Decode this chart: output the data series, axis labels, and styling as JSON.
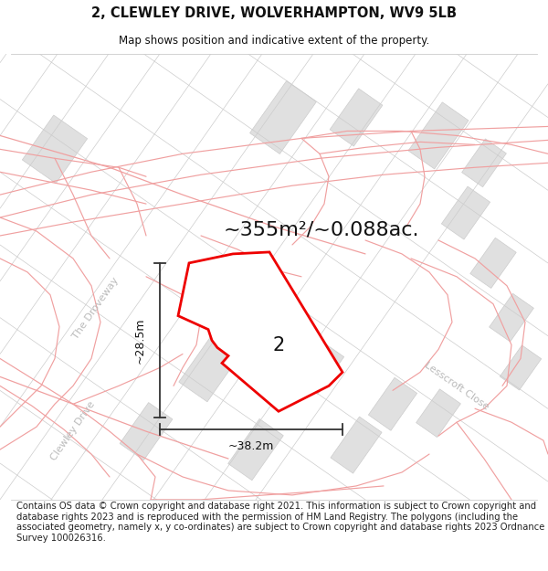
{
  "title_line1": "2, CLEWLEY DRIVE, WOLVERHAMPTON, WV9 5LB",
  "title_line2": "Map shows position and indicative extent of the property.",
  "area_text": "~355m²/~0.088ac.",
  "dim_width": "~38.2m",
  "dim_height": "~28.5m",
  "parcel_label": "2",
  "footer_text": "Contains OS data © Crown copyright and database right 2021. This information is subject to Crown copyright and database rights 2023 and is reproduced with the permission of HM Land Registry. The polygons (including the associated geometry, namely x, y co-ordinates) are subject to Crown copyright and database rights 2023 Ordnance Survey 100026316.",
  "bg_color": "#ffffff",
  "map_bg": "#ffffff",
  "block_fill": "#e0e0e0",
  "block_edge": "#cccccc",
  "pink_road_color": "#f0a0a0",
  "pink_road_lw": 0.8,
  "parcel_color": "#ee0000",
  "parcel_fill": "#ffffff",
  "parcel_lw": 2.0,
  "dim_line_color": "#333333",
  "street_label_color": "#bbbbbb",
  "title_fontsize": 10.5,
  "subtitle_fontsize": 8.5,
  "area_fontsize": 16,
  "parcel_label_fontsize": 15,
  "footer_fontsize": 7.2,
  "dim_fontsize": 9,
  "street_fontsize": 8,
  "road_gray_color": "#cccccc",
  "road_gray_lw": 0.6
}
